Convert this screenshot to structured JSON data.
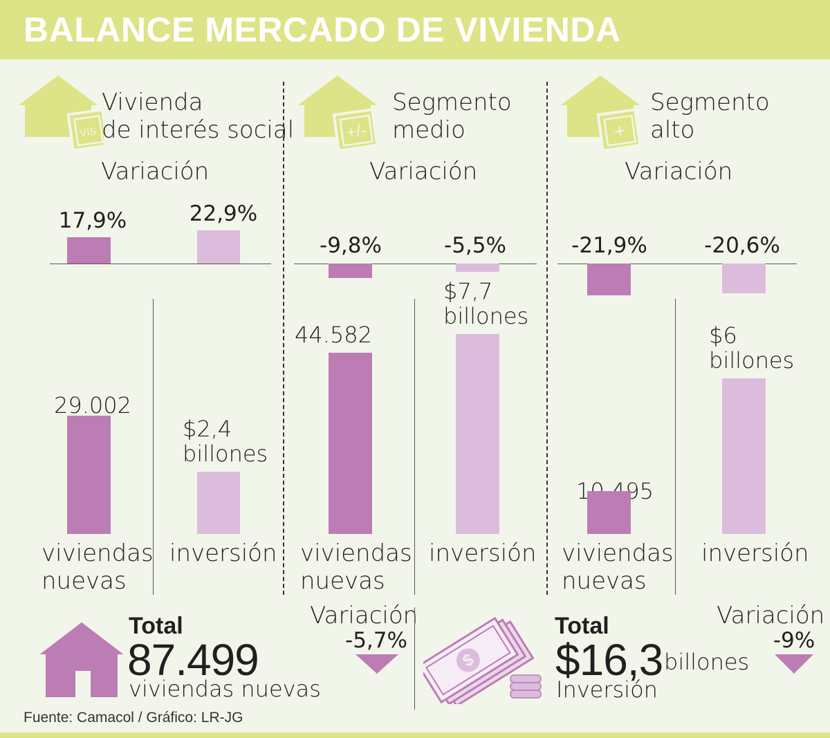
{
  "header": {
    "title": "BALANCE MERCADO DE VIVIENDA"
  },
  "colors": {
    "header_bg": "#dde387",
    "background": "#f2f6ea",
    "viviendas_bar": "#bc7db5",
    "inversion_bar": "#dcbcdc",
    "icon_green": "#dde387"
  },
  "chart_data": [
    {
      "type": "bar",
      "segment": "Vivienda de interés social",
      "title_lines": [
        "Vivienda",
        "de interés social"
      ],
      "icon_label": "VIS",
      "variacion_label": "Variación",
      "variation": {
        "categories": [
          "viviendas nuevas",
          "inversión"
        ],
        "values": [
          17.9,
          22.9
        ],
        "labels": [
          "17,9%",
          "22,9%"
        ]
      },
      "values": {
        "categories": [
          "viviendas nuevas",
          "inversión"
        ],
        "viviendas": 29002,
        "viviendas_label": "29.002",
        "inversion_billones": 2.4,
        "inversion_label_lines": [
          "$2,4",
          "billones"
        ]
      },
      "category_labels": {
        "viviendas_lines": [
          "viviendas",
          "nuevas"
        ],
        "inversion": "inversión"
      }
    },
    {
      "type": "bar",
      "segment": "Segmento medio",
      "title_lines": [
        "Segmento",
        "medio"
      ],
      "icon_label": "+/-",
      "variacion_label": "Variación",
      "variation": {
        "categories": [
          "viviendas nuevas",
          "inversión"
        ],
        "values": [
          -9.8,
          -5.5
        ],
        "labels": [
          "-9,8%",
          "-5,5%"
        ]
      },
      "values": {
        "categories": [
          "viviendas nuevas",
          "inversión"
        ],
        "viviendas": 44582,
        "viviendas_label": "44.582",
        "inversion_billones": 7.7,
        "inversion_label_lines": [
          "$7,7",
          "billones"
        ]
      },
      "category_labels": {
        "viviendas_lines": [
          "viviendas",
          "nuevas"
        ],
        "inversion": "inversión"
      }
    },
    {
      "type": "bar",
      "segment": "Segmento alto",
      "title_lines": [
        "Segmento",
        "alto"
      ],
      "icon_label": "+",
      "variacion_label": "Variación",
      "variation": {
        "categories": [
          "viviendas nuevas",
          "inversión"
        ],
        "values": [
          -21.9,
          -20.6
        ],
        "labels": [
          "-21,9%",
          "-20,6%"
        ]
      },
      "values": {
        "categories": [
          "viviendas nuevas",
          "inversión"
        ],
        "viviendas": 10495,
        "viviendas_label": "10.495",
        "inversion_billones": 6,
        "inversion_label_lines": [
          "$6",
          "billones"
        ]
      },
      "category_labels": {
        "viviendas_lines": [
          "viviendas",
          "nuevas"
        ],
        "inversion": "inversión"
      }
    }
  ],
  "totals": {
    "viviendas": {
      "label": "Total",
      "value": "87.499",
      "unit": "viviendas nuevas",
      "variacion_label": "Variación",
      "variacion": "-5,7%",
      "icon": "house-icon"
    },
    "inversion": {
      "label": "Total",
      "value": "$16,3",
      "unit": "billones",
      "sublabel": "Inversión",
      "variacion_label": "Variación",
      "variacion": "-9%",
      "icon": "money-icon"
    }
  },
  "source": "Fuente: Camacol / Gráfico: LR-JG"
}
